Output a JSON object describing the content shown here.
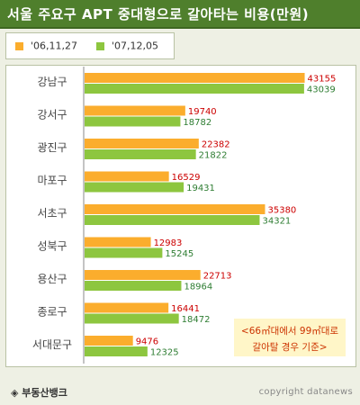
{
  "header": {
    "title": "서울 주요구 APT 중대형으로 갈아타는 비용(만원)"
  },
  "colors": {
    "series1": "#fbad2d",
    "series2": "#8dc63f",
    "label1": "#cc0000",
    "label2": "#2e7d32"
  },
  "chart_data": {
    "type": "bar",
    "orientation": "horizontal",
    "categories": [
      "강남구",
      "강서구",
      "광진구",
      "마포구",
      "서초구",
      "성북구",
      "용산구",
      "종로구",
      "서대문구"
    ],
    "series": [
      {
        "name": "'06,11,27",
        "values": [
          43155,
          19740,
          22382,
          16529,
          35380,
          12983,
          22713,
          16441,
          9476
        ]
      },
      {
        "name": "'07,12,05",
        "values": [
          43039,
          18782,
          21822,
          19431,
          34321,
          15245,
          18964,
          18472,
          12325
        ]
      }
    ],
    "xlim": [
      0,
      45000
    ],
    "legend": "top-left",
    "grid": false
  },
  "note": {
    "line1": "<66㎡대에서 99㎡대로",
    "line2": "갈아탈 경우 기준>"
  },
  "footer": {
    "source": "◈ 부동산뱅크",
    "copyright": "copyright datanews"
  }
}
